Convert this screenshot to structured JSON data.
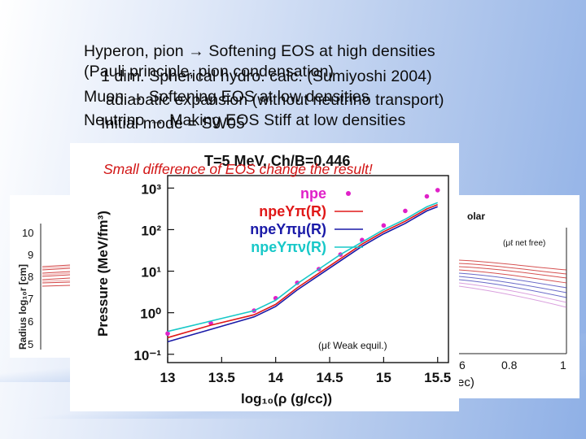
{
  "slide": {
    "lines": [
      "Hyperon, pion → Softening EOS at high densities",
      "(Pauli principle, pion condensation)",
      "1 dim. Spherical hydro. calc. (Sumiyoshi 2004)",
      "Muon → Softening EOS at low densities",
      "adiabatic expansion (without neutrino transport)",
      "Neutrino → Making EOS Stiff at low densities",
      "Initial mode = SW05"
    ],
    "note": "Small difference of EOS change the result!"
  },
  "left_panel": {
    "ylabel": "Radius  log₁₀r [cm]",
    "yticks": [
      "10",
      "9",
      "8",
      "7",
      "6",
      "5"
    ]
  },
  "right_panel": {
    "title_frag": "olar",
    "note": "(μℓ net free)",
    "xticks": [
      "6",
      "0.8",
      "1"
    ],
    "xlabel_frag": "ec)"
  },
  "chart_data": {
    "type": "line",
    "title": "T=5 MeV, Ch/B=0.446",
    "xlabel": "log₁₀(ρ (g/cc))",
    "ylabel": "Pressure (MeV/fm³)",
    "xlim": [
      13,
      15.6
    ],
    "ylim": [
      -1.2,
      3.3
    ],
    "y_log": true,
    "xticks": [
      "13",
      "13.5",
      "14",
      "14.5",
      "15",
      "15.5"
    ],
    "yticks": [
      "10⁻¹",
      "10⁰",
      "10¹",
      "10²",
      "10³"
    ],
    "legend_position": "top-right",
    "annotation": "(μℓ Weak equil.)",
    "series": [
      {
        "name": "npe",
        "color": "#e020c8",
        "style": "points",
        "x": [
          13.0,
          13.4,
          13.8,
          14.0,
          14.2,
          14.4,
          14.6,
          14.8,
          15.0,
          15.2,
          15.4,
          15.5
        ],
        "y": [
          -0.5,
          -0.25,
          0.05,
          0.35,
          0.72,
          1.05,
          1.4,
          1.75,
          2.1,
          2.45,
          2.8,
          2.95
        ]
      },
      {
        "name": "npeYπ(R)",
        "color": "#e01818",
        "style": "line",
        "x": [
          13.0,
          13.4,
          13.8,
          14.0,
          14.2,
          14.4,
          14.6,
          14.8,
          15.0,
          15.2,
          15.4,
          15.5
        ],
        "y": [
          -0.6,
          -0.3,
          -0.05,
          0.2,
          0.6,
          0.95,
          1.3,
          1.65,
          1.95,
          2.2,
          2.5,
          2.6
        ]
      },
      {
        "name": "npeYπμ(R)",
        "color": "#1a1aa8",
        "style": "line",
        "x": [
          13.0,
          13.4,
          13.8,
          14.0,
          14.2,
          14.4,
          14.6,
          14.8,
          15.0,
          15.2,
          15.4,
          15.5
        ],
        "y": [
          -0.7,
          -0.4,
          -0.1,
          0.15,
          0.55,
          0.9,
          1.25,
          1.6,
          1.9,
          2.15,
          2.45,
          2.55
        ]
      },
      {
        "name": "npeYπν(R)",
        "color": "#18c8c8",
        "style": "line",
        "x": [
          13.0,
          13.4,
          13.8,
          14.0,
          14.2,
          14.4,
          14.6,
          14.8,
          15.0,
          15.2,
          15.4,
          15.5
        ],
        "y": [
          -0.45,
          -0.2,
          0.05,
          0.3,
          0.7,
          1.05,
          1.4,
          1.7,
          2.0,
          2.25,
          2.55,
          2.65
        ]
      }
    ]
  }
}
